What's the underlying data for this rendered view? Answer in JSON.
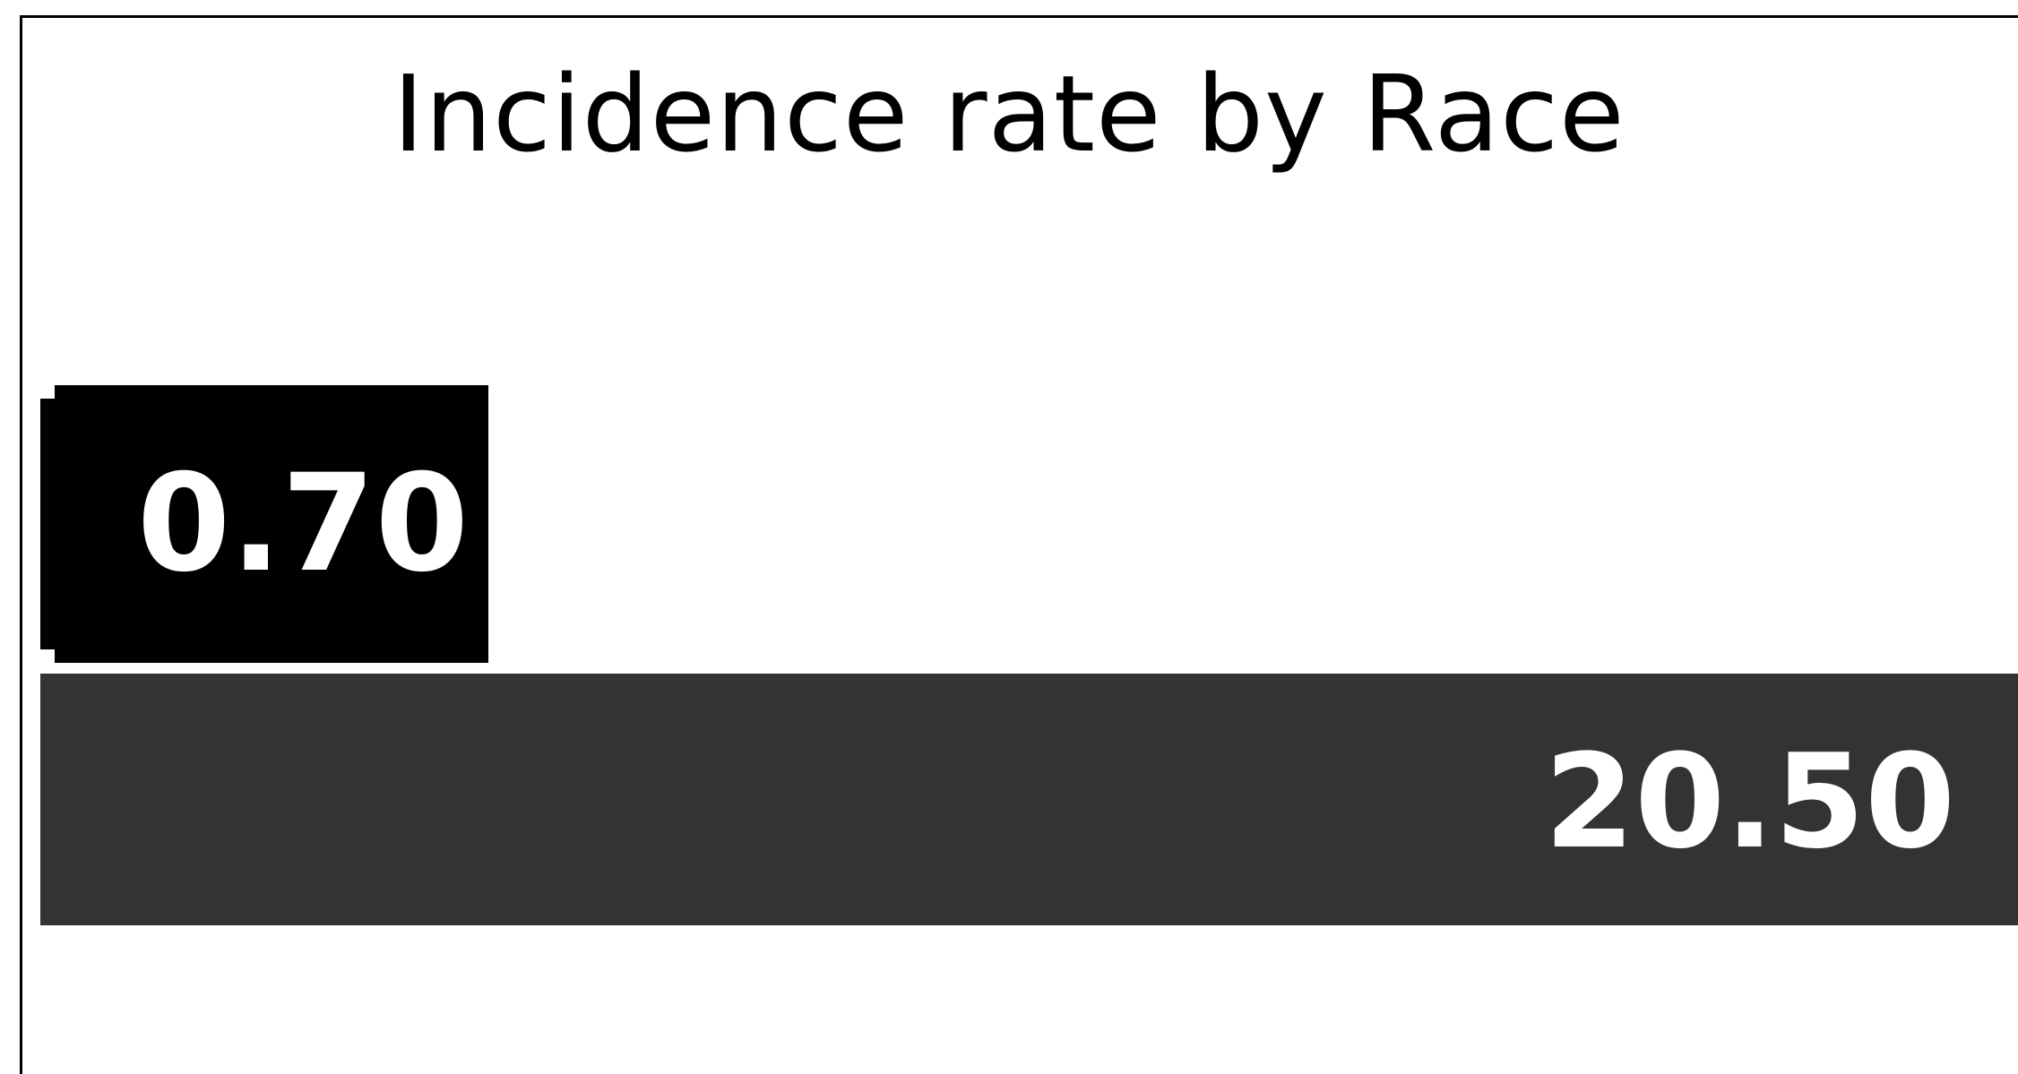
{
  "chart_data": {
    "type": "bar",
    "orientation": "horizontal",
    "title": "Incidence rate by Race",
    "categories": [
      "",
      ""
    ],
    "values": [
      0.7,
      20.5
    ],
    "value_labels": [
      "0.70",
      "20.50"
    ],
    "xlim": [
      0,
      20.5
    ],
    "colors": [
      "#000000",
      "#333333"
    ],
    "label_color": "#ffffff",
    "grid": false,
    "legend": "none",
    "xlabel": "",
    "ylabel": ""
  }
}
